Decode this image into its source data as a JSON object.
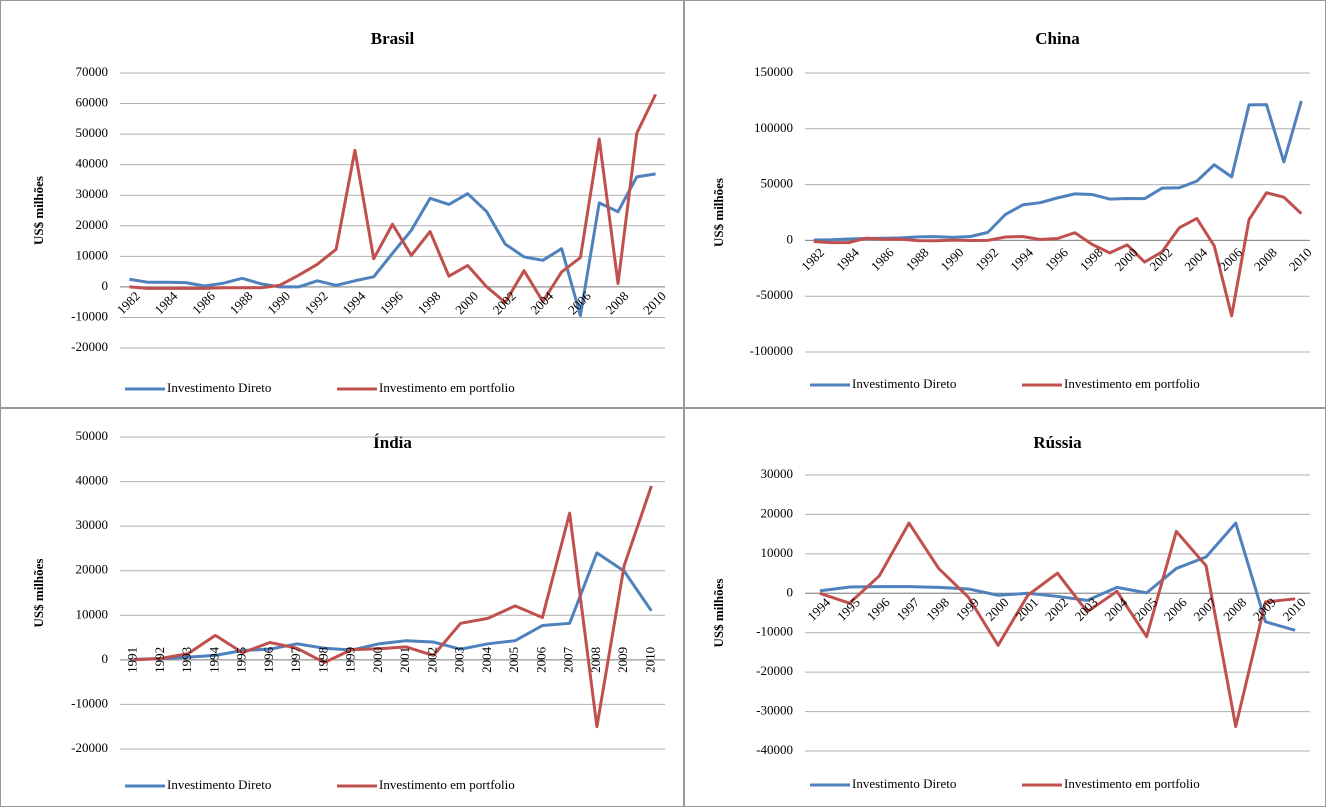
{
  "chart_data": [
    {
      "type": "line",
      "title": "Brasil",
      "y_label": "US$ milhões",
      "categories": [
        "1982",
        null,
        "1984",
        null,
        "1986",
        null,
        "1988",
        null,
        "1990",
        null,
        "1992",
        null,
        "1994",
        null,
        "1996",
        null,
        "1998",
        null,
        "2000",
        null,
        "2002",
        null,
        "2004",
        null,
        "2006",
        null,
        "2008",
        null,
        "2010"
      ],
      "series": [
        {
          "name": "Investimento Direto",
          "color": "#4f81bd",
          "values": [
            2500,
            1500,
            1500,
            1400,
            300,
            1200,
            2800,
            1000,
            0,
            0,
            2000,
            500,
            2000,
            3300,
            11000,
            18500,
            29000,
            27000,
            30500,
            24700,
            14000,
            9800,
            8700,
            12500,
            -9400,
            27500,
            24600,
            36000,
            37000
          ]
        },
        {
          "name": "Investimento em portfolio",
          "color": "#c0504d",
          "values": [
            0,
            -500,
            -500,
            -500,
            -500,
            -300,
            -300,
            -300,
            500,
            3800,
            7400,
            12300,
            44700,
            9200,
            20500,
            10300,
            18100,
            3500,
            7000,
            100,
            -5100,
            5300,
            -4800,
            4900,
            9600,
            48400,
            1100,
            50300,
            63000
          ]
        }
      ],
      "ylim": [
        -20000,
        70000
      ],
      "yticks": [
        -20000,
        -10000,
        0,
        10000,
        20000,
        30000,
        40000,
        50000,
        60000,
        70000
      ],
      "grid": true
    },
    {
      "type": "line",
      "title": "China",
      "y_label": "US$ milhões",
      "categories": [
        "1982",
        null,
        "1984",
        null,
        "1986",
        null,
        "1988",
        null,
        "1990",
        null,
        "1992",
        null,
        "1994",
        null,
        "1996",
        null,
        "1998",
        null,
        "2000",
        null,
        "2002",
        null,
        "2004",
        null,
        "2006",
        null,
        "2008",
        null,
        "2010"
      ],
      "series": [
        {
          "name": "Investimento Direto",
          "color": "#4f81bd",
          "values": [
            400,
            600,
            1300,
            1700,
            1900,
            2300,
            3200,
            3400,
            2700,
            3500,
            7200,
            23100,
            31800,
            33800,
            38100,
            41700,
            41100,
            37000,
            37500,
            37400,
            46800,
            47200,
            53100,
            67800,
            56900,
            121400,
            121700,
            70300,
            124900
          ]
        },
        {
          "name": "Investimento em portfolio",
          "color": "#c0504d",
          "values": [
            -1000,
            -2000,
            -2000,
            2000,
            1000,
            1000,
            -200,
            -300,
            200,
            -100,
            0,
            3000,
            3500,
            800,
            1700,
            6900,
            -3700,
            -11200,
            -4000,
            -19400,
            -10300,
            11400,
            19700,
            -4900,
            -67600,
            18700,
            42700,
            38700,
            24000
          ]
        }
      ],
      "ylim": [
        -100000,
        150000
      ],
      "yticks": [
        -100000,
        -50000,
        0,
        50000,
        100000,
        150000
      ],
      "grid": true
    },
    {
      "type": "line",
      "title": "Índia",
      "y_label": "US$ milhões",
      "categories": [
        "1991",
        "1992",
        "1993",
        "1994",
        "1995",
        "1996",
        "1997",
        "1998",
        "1999",
        "2000",
        "2001",
        "2002",
        "2003",
        "2004",
        "2005",
        "2006",
        "2007",
        "2008",
        "2009",
        "2010"
      ],
      "series": [
        {
          "name": "Investimento Direto",
          "color": "#4f81bd",
          "values": [
            100,
            300,
            600,
            1000,
            2100,
            2400,
            3600,
            2600,
            2200,
            3600,
            4300,
            4000,
            2400,
            3600,
            4300,
            7700,
            8200,
            24000,
            19900,
            11000
          ]
        },
        {
          "name": "Investimento em portfolio",
          "color": "#c0504d",
          "values": [
            0,
            300,
            1400,
            5500,
            1600,
            3900,
            2600,
            -600,
            2300,
            2500,
            2900,
            1000,
            8200,
            9300,
            12100,
            9500,
            32900,
            -15000,
            21100,
            39000
          ]
        }
      ],
      "ylim": [
        -20000,
        50000
      ],
      "yticks": [
        -20000,
        -10000,
        0,
        10000,
        20000,
        30000,
        40000,
        50000
      ],
      "grid": true
    },
    {
      "type": "line",
      "title": "Rússia",
      "y_label": "US$ milhões",
      "categories": [
        "1994",
        "1995",
        "1996",
        "1997",
        "1998",
        "1999",
        "2000",
        "2001",
        "2002",
        "2003",
        "2004",
        "2005",
        "2006",
        "2007",
        "2008",
        "2009",
        "2010"
      ],
      "series": [
        {
          "name": "Investimento Direto",
          "color": "#4f81bd",
          "values": [
            600,
            1600,
            1700,
            1700,
            1500,
            1100,
            -500,
            0,
            -800,
            -1800,
            1500,
            100,
            6300,
            9200,
            17800,
            -7200,
            -9400
          ]
        },
        {
          "name": "Investimento em portfolio",
          "color": "#c0504d",
          "values": [
            0,
            -2500,
            4400,
            17800,
            6300,
            -1000,
            -13200,
            -500,
            5100,
            -4700,
            500,
            -11000,
            15700,
            7000,
            -33800,
            -2200,
            -1400
          ]
        }
      ],
      "ylim": [
        -40000,
        30000
      ],
      "yticks": [
        -40000,
        -30000,
        -20000,
        -10000,
        0,
        10000,
        20000,
        30000
      ],
      "grid": true
    }
  ]
}
